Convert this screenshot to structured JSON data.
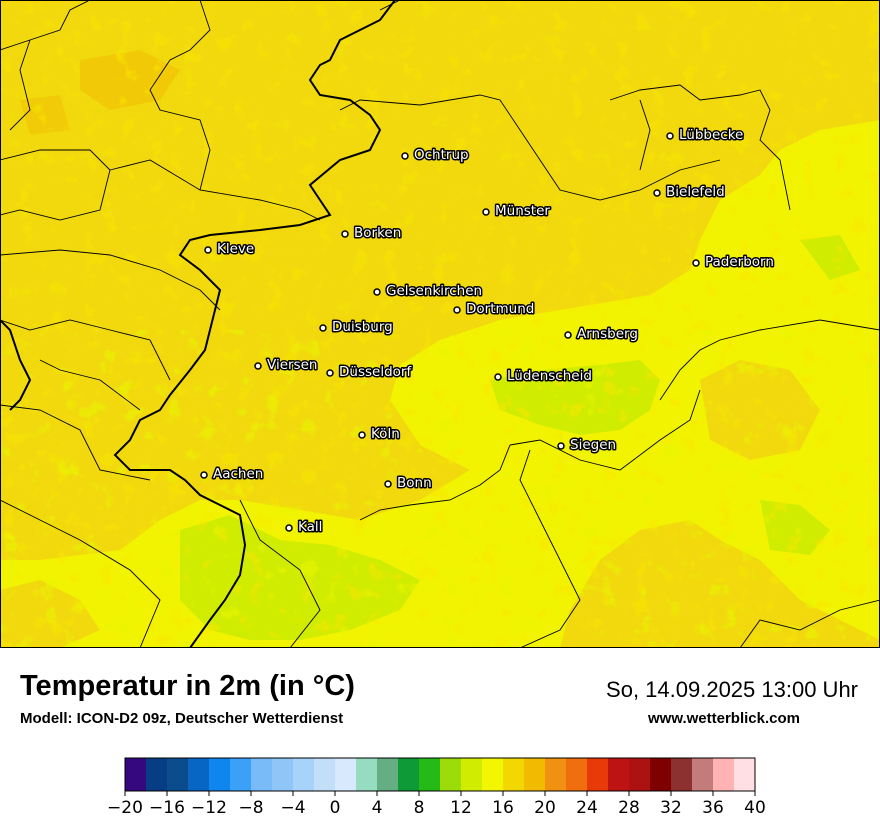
{
  "title": "Temperatur in 2m (in °C)",
  "model": "Modell: ICON-D2 09z, Deutscher Wetterdienst",
  "datetime": "So, 14.09.2025 13:00 Uhr",
  "website": "www.wetterblick.com",
  "cities": [
    {
      "name": "Lübbecke"
    },
    {
      "name": "Ochtrup"
    },
    {
      "name": "Bielefeld"
    },
    {
      "name": "Münster"
    },
    {
      "name": "Borken"
    },
    {
      "name": "Kleve"
    },
    {
      "name": "Paderborn"
    },
    {
      "name": "Gelsenkirchen"
    },
    {
      "name": "Dortmund"
    },
    {
      "name": "Duisburg"
    },
    {
      "name": "Arnsberg"
    },
    {
      "name": "Viersen"
    },
    {
      "name": "Düsseldorf"
    },
    {
      "name": "Lüdenscheid"
    },
    {
      "name": "Köln"
    },
    {
      "name": "Siegen"
    },
    {
      "name": "Aachen"
    },
    {
      "name": "Bonn"
    },
    {
      "name": "Kall"
    }
  ],
  "legend": {
    "tick_labels": [
      "−20",
      "−16",
      "−12",
      "−8",
      "−4",
      "0",
      "4",
      "8",
      "12",
      "16",
      "20",
      "24",
      "28",
      "32",
      "36",
      "40"
    ],
    "colors": [
      "#35087f",
      "#073d85",
      "#0a4c8c",
      "#0765c4",
      "#0e86ee",
      "#3ba0f7",
      "#79bbf9",
      "#90c6f7",
      "#a7d3fb",
      "#c3def9",
      "#d8e9fd",
      "#95dcc0",
      "#65ad83",
      "#0d9a37",
      "#26ba18",
      "#9ddc0b",
      "#d0ec00",
      "#f2f600",
      "#f2d800",
      "#f1bb00",
      "#f19111",
      "#f06e0d",
      "#e83908",
      "#bd1313",
      "#ad1212",
      "#7e0000",
      "#8c312f",
      "#c37b7b",
      "#ffb3b3",
      "#ffdfe3"
    ]
  },
  "map_colors": {
    "warm_base": "#f1d90e",
    "mid_yellow": "#f2f300",
    "light_green": "#d0ec00",
    "border_color": "#000000"
  }
}
